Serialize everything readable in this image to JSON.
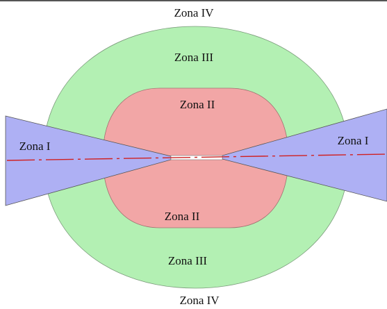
{
  "labels": [
    "Zona IV",
    "Zona III",
    "Zona II",
    "Zona I",
    "Zona I",
    "Zona II",
    "Zona III",
    "Zona IV"
  ]
}
